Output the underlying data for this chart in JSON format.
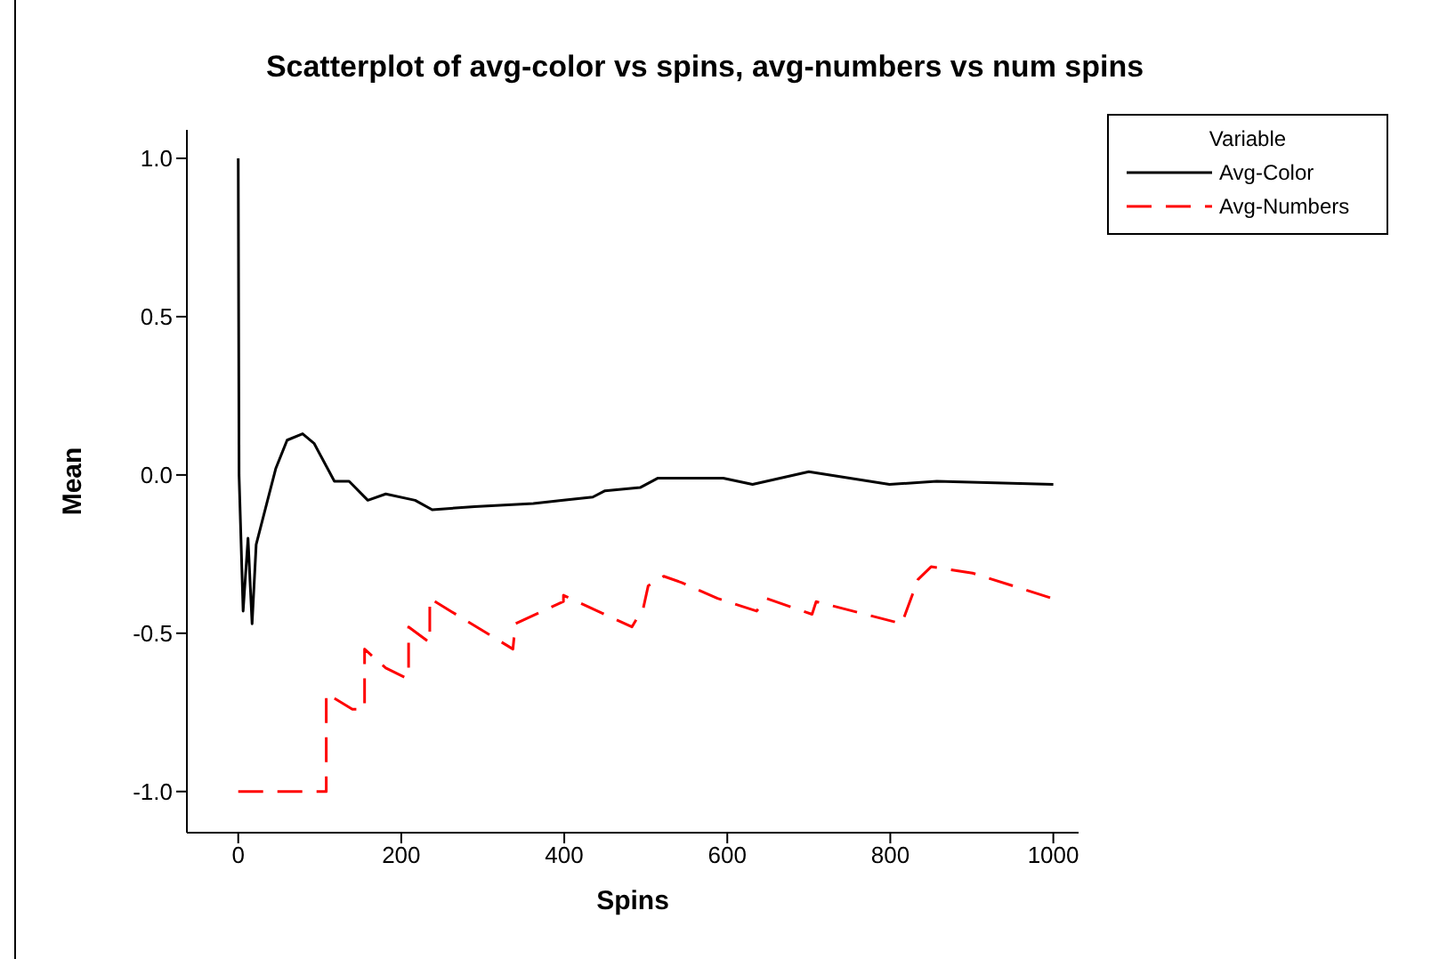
{
  "chart_data": {
    "type": "line",
    "title": "Scatterplot of avg-color vs spins, avg-numbers vs num spins",
    "xlabel": "Spins",
    "ylabel": "Mean",
    "legend_title": "Variable",
    "legend": "right",
    "grid": false,
    "marker": "none",
    "xlim": [
      -63,
      1031
    ],
    "ylim": [
      -1.13,
      1.09
    ],
    "xticks": [
      0,
      200,
      400,
      600,
      800,
      1000
    ],
    "yticks": [
      {
        "value": -1,
        "label": "-1.0"
      },
      {
        "value": -0.5,
        "label": "-0.5"
      },
      {
        "value": 0,
        "label": "0.0"
      },
      {
        "value": 0.5,
        "label": "0.5"
      },
      {
        "value": 1,
        "label": "1.0"
      }
    ],
    "series": [
      {
        "name": "Avg-Color",
        "color": "#000000",
        "line_style": "solid",
        "x": [
          0,
          1,
          6,
          12,
          17,
          22,
          35,
          46,
          60,
          79,
          93,
          118,
          136,
          159,
          181,
          217,
          238,
          290,
          362,
          399,
          435,
          450,
          493,
          515,
          595,
          631,
          700,
          799,
          857,
          1000
        ],
        "values": [
          1.0,
          0.0,
          -0.43,
          -0.2,
          -0.47,
          -0.22,
          -0.09,
          0.02,
          0.11,
          0.13,
          0.1,
          -0.02,
          -0.02,
          -0.08,
          -0.06,
          -0.08,
          -0.11,
          -0.1,
          -0.09,
          -0.08,
          -0.07,
          -0.05,
          -0.04,
          -0.01,
          -0.01,
          -0.03,
          0.01,
          -0.03,
          -0.02,
          -0.03
        ]
      },
      {
        "name": "Avg-Numbers",
        "color": "#ff0000",
        "line_style": "dashed",
        "x": [
          0,
          108,
          108,
          140,
          155,
          155,
          181,
          205,
          209,
          209,
          235,
          235,
          337,
          340,
          399,
          399,
          483,
          497,
          503,
          522,
          544,
          588,
          636,
          648,
          704,
          709,
          814,
          834,
          850,
          901,
          999
        ],
        "values": [
          -1.0,
          -1.0,
          -0.69,
          -0.74,
          -0.74,
          -0.55,
          -0.61,
          -0.64,
          -0.64,
          -0.48,
          -0.53,
          -0.39,
          -0.55,
          -0.47,
          -0.4,
          -0.38,
          -0.48,
          -0.42,
          -0.35,
          -0.32,
          -0.34,
          -0.39,
          -0.43,
          -0.39,
          -0.44,
          -0.4,
          -0.47,
          -0.33,
          -0.29,
          -0.31,
          -0.39
        ]
      }
    ]
  }
}
